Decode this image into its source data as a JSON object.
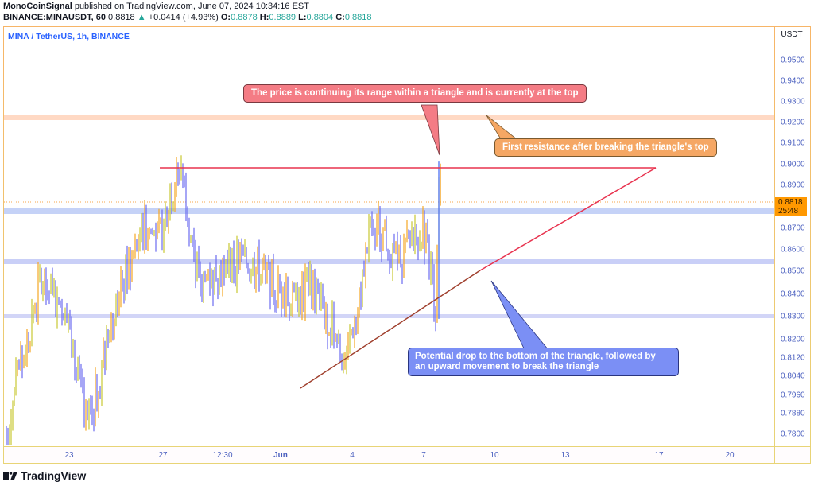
{
  "header": {
    "author": "MonoCoinSignal",
    "published_text": " published on TradingView.com, June 07, 2024 10:34:16 EST",
    "symbol": "BINANCE:MINAUSDT, 60",
    "last": "0.8818",
    "change_arrow": "▲",
    "change": "+0.0414 (+4.93%)",
    "ohlc": {
      "o_label": "O:",
      "o": "0.8878",
      "h_label": "H:",
      "h": "0.8889",
      "l_label": "L:",
      "l": "0.8804",
      "c_label": "C:",
      "c": "0.8818"
    }
  },
  "chart_data": {
    "type": "candlestick",
    "title": "MINA / TetherUS, 1h, BINANCE",
    "currency": "USDT",
    "y_ticks": [
      "0.9500",
      "0.9400",
      "0.9300",
      "0.9200",
      "0.9100",
      "0.9000",
      "0.8900",
      "0.8700",
      "0.8600",
      "0.8500",
      "0.8400",
      "0.8300",
      "0.8200",
      "0.8120",
      "0.8040",
      "0.7960",
      "0.7880",
      "0.7800"
    ],
    "x_ticks": [
      "23",
      "27",
      "12:30",
      "Jun",
      "4",
      "7",
      "10",
      "13",
      "17",
      "20"
    ],
    "current_price": "0.8818",
    "countdown": "25:48",
    "colors": {
      "up": "#f5a623",
      "down": "#6b6bf0",
      "up_alt": "#c8c832",
      "triangle": "#e8334f",
      "support_band": "#c5d2f7",
      "resistance_band": "#ffd9c4"
    },
    "horizontal_levels": [
      {
        "name": "resistance-zone",
        "price": 0.9215,
        "color": "#ffd9c4"
      },
      {
        "name": "support-1",
        "price": 0.877,
        "color": "#c5d2f7"
      },
      {
        "name": "support-2",
        "price": 0.8545,
        "color": "#c5d2f7"
      },
      {
        "name": "support-3",
        "price": 0.83,
        "color": "#d2d2f7"
      }
    ],
    "triangle": {
      "top_line": {
        "from_x": "26 May",
        "to_x": "~17 Jun",
        "price": 0.8975
      },
      "bottom_line": {
        "from_price": 0.799,
        "to_price": 0.8975
      }
    },
    "price_series_approx": [
      {
        "x": "20 May",
        "price": 0.78
      },
      {
        "x": "21 May",
        "price": 0.845
      },
      {
        "x": "22 May",
        "price": 0.835
      },
      {
        "x": "23 May",
        "price": 0.78
      },
      {
        "x": "24 May",
        "price": 0.84
      },
      {
        "x": "25 May",
        "price": 0.87
      },
      {
        "x": "26 May",
        "price": 0.865
      },
      {
        "x": "27 May",
        "price": 0.9
      },
      {
        "x": "28 May",
        "price": 0.845
      },
      {
        "x": "29 May",
        "price": 0.855
      },
      {
        "x": "30 May",
        "price": 0.85
      },
      {
        "x": "31 May",
        "price": 0.835
      },
      {
        "x": "1 Jun",
        "price": 0.845
      },
      {
        "x": "2 Jun",
        "price": 0.83
      },
      {
        "x": "3 Jun",
        "price": 0.81
      },
      {
        "x": "4 Jun",
        "price": 0.875
      },
      {
        "x": "5 Jun",
        "price": 0.855
      },
      {
        "x": "6 Jun",
        "price": 0.87
      },
      {
        "x": "7 Jun",
        "price": 0.835
      },
      {
        "x": "7 Jun late",
        "price": 0.9
      },
      {
        "x": "8 Jun",
        "price": 0.8818
      }
    ]
  },
  "annotations": [
    {
      "name": "callout-top",
      "text": "The price is continuing its range within a triangle and is currently at the top",
      "color": "#f47c85"
    },
    {
      "name": "callout-resistance",
      "text": "First resistance after breaking the triangle's top",
      "color": "#f5a764"
    },
    {
      "name": "callout-bottom",
      "text_line1": "Potential drop to the bottom of the triangle, followed by",
      "text_line2": "an upward movement to break the triangle",
      "color": "#7b8ff5"
    }
  ],
  "footer": {
    "brand": "TradingView"
  }
}
